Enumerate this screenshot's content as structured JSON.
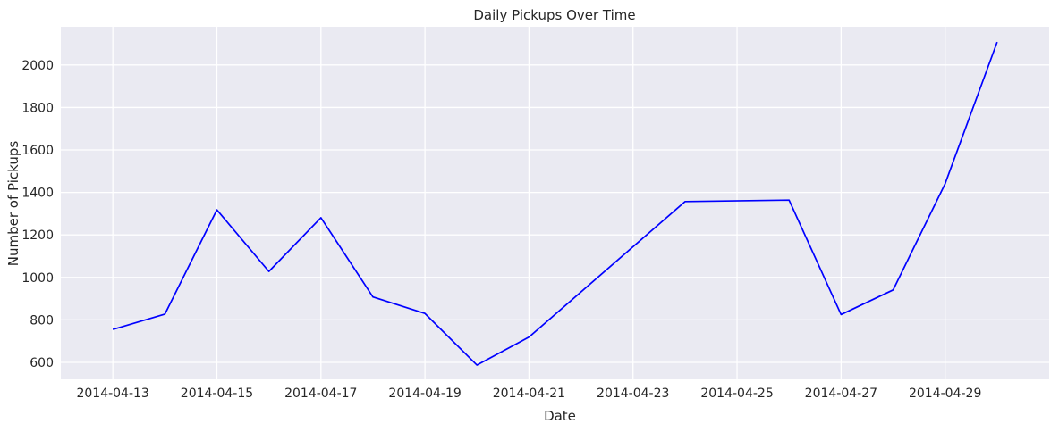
{
  "chart_data": {
    "type": "line",
    "title": "Daily Pickups Over Time",
    "xlabel": "Date",
    "ylabel": "Number of Pickups",
    "x": [
      "2014-04-13",
      "2014-04-14",
      "2014-04-15",
      "2014-04-16",
      "2014-04-17",
      "2014-04-18",
      "2014-04-19",
      "2014-04-20",
      "2014-04-21",
      "2014-04-24",
      "2014-04-26",
      "2014-04-27",
      "2014-04-28",
      "2014-04-29",
      "2014-04-30"
    ],
    "series": [
      {
        "values": [
          755,
          827,
          1318,
          1028,
          1281,
          908,
          830,
          587,
          719,
          1357,
          1364,
          825,
          941,
          1441,
          2108
        ],
        "color": "#0000ff"
      }
    ],
    "x_range": [
      "2014-04-12",
      "2014-05-01"
    ],
    "x_ticks": [
      "2014-04-13",
      "2014-04-15",
      "2014-04-17",
      "2014-04-19",
      "2014-04-21",
      "2014-04-23",
      "2014-04-25",
      "2014-04-27",
      "2014-04-29"
    ],
    "ylim": [
      520,
      2180
    ],
    "y_ticks": [
      600,
      800,
      1000,
      1200,
      1400,
      1600,
      1800,
      2000
    ],
    "grid": true,
    "background_color": "#eaeaf2",
    "grid_color": "#ffffff"
  }
}
